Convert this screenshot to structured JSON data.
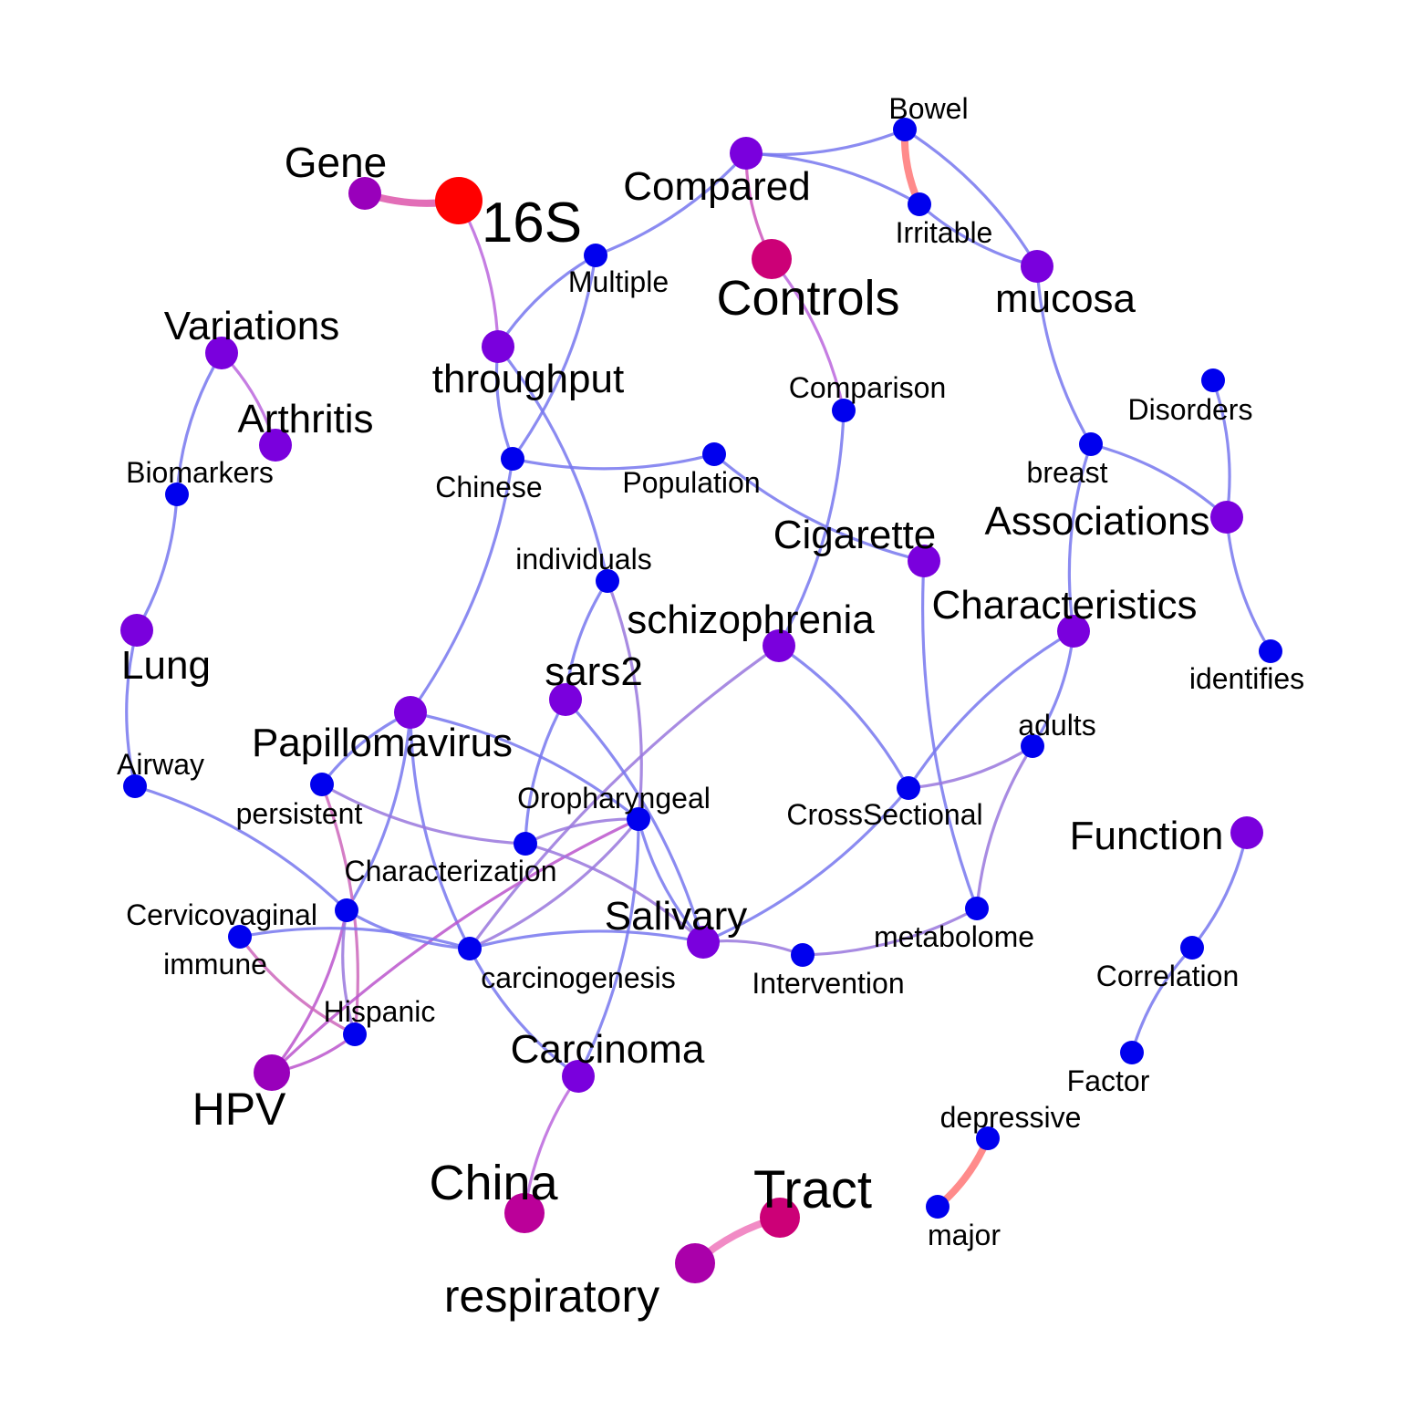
{
  "nodes": [
    {
      "id": "16S",
      "label": "16S",
      "color": "#ff0000"
    },
    {
      "id": "Gene",
      "label": "Gene",
      "color": "#9900bb"
    },
    {
      "id": "Compared",
      "label": "Compared",
      "color": "#7a00dd"
    },
    {
      "id": "Bowel",
      "label": "Bowel",
      "color": "#0000ee"
    },
    {
      "id": "Irritable",
      "label": "Irritable",
      "color": "#0000ee"
    },
    {
      "id": "Controls",
      "label": "Controls",
      "color": "#cc0077"
    },
    {
      "id": "mucosa",
      "label": "mucosa",
      "color": "#7a00dd"
    },
    {
      "id": "Multiple",
      "label": "Multiple",
      "color": "#0000ee"
    },
    {
      "id": "throughput",
      "label": "throughput",
      "color": "#7a00dd"
    },
    {
      "id": "Variations",
      "label": "Variations",
      "color": "#7a00dd"
    },
    {
      "id": "Arthritis",
      "label": "Arthritis",
      "color": "#7a00dd"
    },
    {
      "id": "Biomarkers",
      "label": "Biomarkers",
      "color": "#0000ee"
    },
    {
      "id": "Chinese",
      "label": "Chinese",
      "color": "#0000ee"
    },
    {
      "id": "Population",
      "label": "Population",
      "color": "#0000ee"
    },
    {
      "id": "Comparison",
      "label": "Comparison",
      "color": "#0000ee"
    },
    {
      "id": "Disorders",
      "label": "Disorders",
      "color": "#0000ee"
    },
    {
      "id": "breast",
      "label": "breast",
      "color": "#0000ee"
    },
    {
      "id": "Associations",
      "label": "Associations",
      "color": "#7a00dd"
    },
    {
      "id": "Cigarette",
      "label": "Cigarette",
      "color": "#7a00dd"
    },
    {
      "id": "individuals",
      "label": "individuals",
      "color": "#0000ee"
    },
    {
      "id": "schizophrenia",
      "label": "schizophrenia",
      "color": "#7a00dd"
    },
    {
      "id": "Characteristics",
      "label": "Characteristics",
      "color": "#7a00dd"
    },
    {
      "id": "Lung",
      "label": "Lung",
      "color": "#7a00dd"
    },
    {
      "id": "sars2",
      "label": "sars2",
      "color": "#7a00dd"
    },
    {
      "id": "identifies",
      "label": "identifies",
      "color": "#0000ee"
    },
    {
      "id": "Papillomavirus",
      "label": "Papillomavirus",
      "color": "#7a00dd"
    },
    {
      "id": "adults",
      "label": "adults",
      "color": "#0000ee"
    },
    {
      "id": "Airway",
      "label": "Airway",
      "color": "#0000ee"
    },
    {
      "id": "persistent",
      "label": "persistent",
      "color": "#0000ee"
    },
    {
      "id": "Oropharyngeal",
      "label": "Oropharyngeal",
      "color": "#0000ee"
    },
    {
      "id": "CrossSectional",
      "label": "CrossSectional",
      "color": "#0000ee"
    },
    {
      "id": "Function",
      "label": "Function",
      "color": "#7a00dd"
    },
    {
      "id": "Characterization",
      "label": "Characterization",
      "color": "#0000ee"
    },
    {
      "id": "Cervicovaginal",
      "label": "Cervicovaginal",
      "color": "#0000ee"
    },
    {
      "id": "Salivary",
      "label": "Salivary",
      "color": "#7a00dd"
    },
    {
      "id": "metabolome",
      "label": "metabolome",
      "color": "#0000ee"
    },
    {
      "id": "immune",
      "label": "immune",
      "color": "#0000ee"
    },
    {
      "id": "carcinogenesis",
      "label": "carcinogenesis",
      "color": "#0000ee"
    },
    {
      "id": "Intervention",
      "label": "Intervention",
      "color": "#0000ee"
    },
    {
      "id": "Correlation",
      "label": "Correlation",
      "color": "#0000ee"
    },
    {
      "id": "Hispanic",
      "label": "Hispanic",
      "color": "#0000ee"
    },
    {
      "id": "Carcinoma",
      "label": "Carcinoma",
      "color": "#7a00dd"
    },
    {
      "id": "Factor",
      "label": "Factor",
      "color": "#0000ee"
    },
    {
      "id": "HPV",
      "label": "HPV",
      "color": "#9900bb"
    },
    {
      "id": "depressive",
      "label": "depressive",
      "color": "#0000ee"
    },
    {
      "id": "China",
      "label": "China",
      "color": "#bb0099"
    },
    {
      "id": "Tract",
      "label": "Tract",
      "color": "#cc0077"
    },
    {
      "id": "major",
      "label": "major",
      "color": "#0000ee"
    },
    {
      "id": "respiratory",
      "label": "respiratory",
      "color": "#aa00aa"
    }
  ],
  "edges": [
    {
      "source": "Gene",
      "target": "16S",
      "color": "#dd55aa"
    },
    {
      "source": "16S",
      "target": "throughput",
      "color": "#bb66dd"
    },
    {
      "source": "Compared",
      "target": "Bowel",
      "color": "#7777ee"
    },
    {
      "source": "Compared",
      "target": "Irritable",
      "color": "#7777ee"
    },
    {
      "source": "Compared",
      "target": "Controls",
      "color": "#cc55bb"
    },
    {
      "source": "Compared",
      "target": "Multiple",
      "color": "#7777ee"
    },
    {
      "source": "Bowel",
      "target": "Irritable",
      "color": "#ff7777"
    },
    {
      "source": "Bowel",
      "target": "mucosa",
      "color": "#7777ee"
    },
    {
      "source": "Irritable",
      "target": "mucosa",
      "color": "#7777ee"
    },
    {
      "source": "Controls",
      "target": "Comparison",
      "color": "#bb66dd"
    },
    {
      "source": "Multiple",
      "target": "throughput",
      "color": "#7777ee"
    },
    {
      "source": "Multiple",
      "target": "Chinese",
      "color": "#7777ee"
    },
    {
      "source": "throughput",
      "target": "Chinese",
      "color": "#7777ee"
    },
    {
      "source": "throughput",
      "target": "individuals",
      "color": "#7777ee"
    },
    {
      "source": "Chinese",
      "target": "Population",
      "color": "#7777ee"
    },
    {
      "source": "Chinese",
      "target": "Papillomavirus",
      "color": "#7777ee"
    },
    {
      "source": "Population",
      "target": "Cigarette",
      "color": "#7777ee"
    },
    {
      "source": "Comparison",
      "target": "schizophrenia",
      "color": "#7777ee"
    },
    {
      "source": "mucosa",
      "target": "breast",
      "color": "#7777ee"
    },
    {
      "source": "breast",
      "target": "Associations",
      "color": "#7777ee"
    },
    {
      "source": "breast",
      "target": "Characteristics",
      "color": "#7777ee"
    },
    {
      "source": "Disorders",
      "target": "Associations",
      "color": "#7777ee"
    },
    {
      "source": "Associations",
      "target": "identifies",
      "color": "#7777ee"
    },
    {
      "source": "Variations",
      "target": "Arthritis",
      "color": "#bb66dd"
    },
    {
      "source": "Variations",
      "target": "Biomarkers",
      "color": "#7777ee"
    },
    {
      "source": "Biomarkers",
      "target": "Lung",
      "color": "#7777ee"
    },
    {
      "source": "Lung",
      "target": "Airway",
      "color": "#7777ee"
    },
    {
      "source": "Airway",
      "target": "Cervicovaginal",
      "color": "#7777ee"
    },
    {
      "source": "individuals",
      "target": "sars2",
      "color": "#7777ee"
    },
    {
      "source": "individuals",
      "target": "Oropharyngeal",
      "color": "#9977dd"
    },
    {
      "source": "schizophrenia",
      "target": "carcinogenesis",
      "color": "#9977dd"
    },
    {
      "source": "schizophrenia",
      "target": "CrossSectional",
      "color": "#7777ee"
    },
    {
      "source": "Characteristics",
      "target": "CrossSectional",
      "color": "#7777ee"
    },
    {
      "source": "Characteristics",
      "target": "adults",
      "color": "#7777ee"
    },
    {
      "source": "Cigarette",
      "target": "metabolome",
      "color": "#7777ee"
    },
    {
      "source": "adults",
      "target": "CrossSectional",
      "color": "#9977dd"
    },
    {
      "source": "adults",
      "target": "metabolome",
      "color": "#9977dd"
    },
    {
      "source": "CrossSectional",
      "target": "Salivary",
      "color": "#7777ee"
    },
    {
      "source": "sars2",
      "target": "Characterization",
      "color": "#7777ee"
    },
    {
      "source": "sars2",
      "target": "Salivary",
      "color": "#7777ee"
    },
    {
      "source": "Papillomavirus",
      "target": "persistent",
      "color": "#7777ee"
    },
    {
      "source": "Papillomavirus",
      "target": "Cervicovaginal",
      "color": "#7777ee"
    },
    {
      "source": "Papillomavirus",
      "target": "carcinogenesis",
      "color": "#7777ee"
    },
    {
      "source": "Papillomavirus",
      "target": "Oropharyngeal",
      "color": "#7777ee"
    },
    {
      "source": "persistent",
      "target": "Characterization",
      "color": "#9977dd"
    },
    {
      "source": "persistent",
      "target": "Hispanic",
      "color": "#cc66bb"
    },
    {
      "source": "Oropharyngeal",
      "target": "Characterization",
      "color": "#9977dd"
    },
    {
      "source": "Oropharyngeal",
      "target": "Carcinoma",
      "color": "#7777ee"
    },
    {
      "source": "Oropharyngeal",
      "target": "Salivary",
      "color": "#7777ee"
    },
    {
      "source": "Oropharyngeal",
      "target": "carcinogenesis",
      "color": "#9977dd"
    },
    {
      "source": "Oropharyngeal",
      "target": "HPV",
      "color": "#bb55cc"
    },
    {
      "source": "Characterization",
      "target": "Salivary",
      "color": "#9977dd"
    },
    {
      "source": "Cervicovaginal",
      "target": "carcinogenesis",
      "color": "#7777ee"
    },
    {
      "source": "Cervicovaginal",
      "target": "HPV",
      "color": "#bb55cc"
    },
    {
      "source": "Cervicovaginal",
      "target": "Hispanic",
      "color": "#9977dd"
    },
    {
      "source": "immune",
      "target": "carcinogenesis",
      "color": "#7777ee"
    },
    {
      "source": "immune",
      "target": "Hispanic",
      "color": "#cc66bb"
    },
    {
      "source": "carcinogenesis",
      "target": "Salivary",
      "color": "#7777ee"
    },
    {
      "source": "carcinogenesis",
      "target": "Carcinoma",
      "color": "#7777ee"
    },
    {
      "source": "Salivary",
      "target": "Intervention",
      "color": "#9977dd"
    },
    {
      "source": "Intervention",
      "target": "metabolome",
      "color": "#9977dd"
    },
    {
      "source": "Hispanic",
      "target": "HPV",
      "color": "#bb55cc"
    },
    {
      "source": "Carcinoma",
      "target": "China",
      "color": "#bb66dd"
    },
    {
      "source": "Function",
      "target": "Correlation",
      "color": "#7777ee"
    },
    {
      "source": "Correlation",
      "target": "Factor",
      "color": "#7777ee"
    },
    {
      "source": "depressive",
      "target": "major",
      "color": "#ff7777"
    },
    {
      "source": "Tract",
      "target": "respiratory",
      "color": "#ee77bb"
    }
  ]
}
